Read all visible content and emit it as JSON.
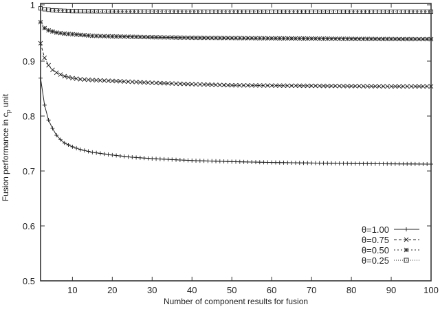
{
  "chart_data": {
    "type": "line",
    "title": "",
    "xlabel": "Number of component results for fusion",
    "ylabel": "Fusion performance in c_p unit",
    "ylabel_main": "Fusion performance in c",
    "ylabel_sub": "p",
    "ylabel_tail": " unit",
    "xlim": [
      2,
      100
    ],
    "ylim": [
      0.5,
      1.0
    ],
    "xticks": [
      10,
      20,
      30,
      40,
      50,
      60,
      70,
      80,
      90,
      100
    ],
    "yticks": [
      0.5,
      0.6,
      0.7,
      0.8,
      0.9,
      1.0
    ],
    "ytick_labels": [
      "0.5",
      "0.6",
      "0.7",
      "0.8",
      "0.9",
      "1"
    ],
    "grid": false,
    "legend_position": "lower right (inside)",
    "series": [
      {
        "name": "θ=1.00",
        "marker": "plus",
        "line": "solid",
        "anchors": [
          [
            2,
            0.869
          ],
          [
            3,
            0.82
          ],
          [
            4,
            0.7925
          ],
          [
            5,
            0.7775
          ],
          [
            6,
            0.765
          ],
          [
            7,
            0.757
          ],
          [
            8,
            0.751
          ],
          [
            10,
            0.744
          ],
          [
            12,
            0.739
          ],
          [
            15,
            0.734
          ],
          [
            20,
            0.729
          ],
          [
            25,
            0.725
          ],
          [
            30,
            0.7225
          ],
          [
            40,
            0.719
          ],
          [
            50,
            0.717
          ],
          [
            60,
            0.7155
          ],
          [
            70,
            0.7145
          ],
          [
            80,
            0.7135
          ],
          [
            90,
            0.713
          ],
          [
            100,
            0.7125
          ]
        ]
      },
      {
        "name": "θ=0.75",
        "marker": "cross",
        "line": "dashed",
        "anchors": [
          [
            2,
            0.9325
          ],
          [
            3,
            0.906
          ],
          [
            4,
            0.8925
          ],
          [
            5,
            0.884
          ],
          [
            6,
            0.879
          ],
          [
            7,
            0.8755
          ],
          [
            8,
            0.8725
          ],
          [
            10,
            0.869
          ],
          [
            12,
            0.867
          ],
          [
            15,
            0.8655
          ],
          [
            20,
            0.864
          ],
          [
            30,
            0.8605
          ],
          [
            40,
            0.858
          ],
          [
            50,
            0.856
          ],
          [
            60,
            0.8555
          ],
          [
            70,
            0.855
          ],
          [
            80,
            0.8545
          ],
          [
            90,
            0.854
          ],
          [
            100,
            0.854
          ]
        ]
      },
      {
        "name": "θ=0.50",
        "marker": "star",
        "line": "short-dashed",
        "anchors": [
          [
            2,
            0.971
          ],
          [
            3,
            0.96
          ],
          [
            4,
            0.956
          ],
          [
            5,
            0.954
          ],
          [
            6,
            0.952
          ],
          [
            8,
            0.95
          ],
          [
            10,
            0.949
          ],
          [
            15,
            0.946
          ],
          [
            20,
            0.945
          ],
          [
            30,
            0.9435
          ],
          [
            40,
            0.9425
          ],
          [
            50,
            0.942
          ],
          [
            60,
            0.9415
          ],
          [
            70,
            0.941
          ],
          [
            80,
            0.9405
          ],
          [
            90,
            0.9402
          ],
          [
            100,
            0.94
          ]
        ]
      },
      {
        "name": "θ=0.25",
        "marker": "square",
        "line": "dotted",
        "anchors": [
          [
            2,
            0.996
          ],
          [
            3,
            0.9945
          ],
          [
            4,
            0.9935
          ],
          [
            5,
            0.9925
          ],
          [
            8,
            0.9915
          ],
          [
            10,
            0.991
          ],
          [
            20,
            0.9905
          ],
          [
            40,
            0.99
          ],
          [
            60,
            0.99
          ],
          [
            80,
            0.99
          ],
          [
            100,
            0.99
          ]
        ]
      }
    ]
  },
  "legend": {
    "items": [
      {
        "label": "θ=1.00"
      },
      {
        "label": "θ=0.75"
      },
      {
        "label": "θ=0.50"
      },
      {
        "label": "θ=0.25"
      }
    ]
  },
  "colors": {
    "axis": "#333333",
    "series": "#222222",
    "background": "#ffffff"
  }
}
